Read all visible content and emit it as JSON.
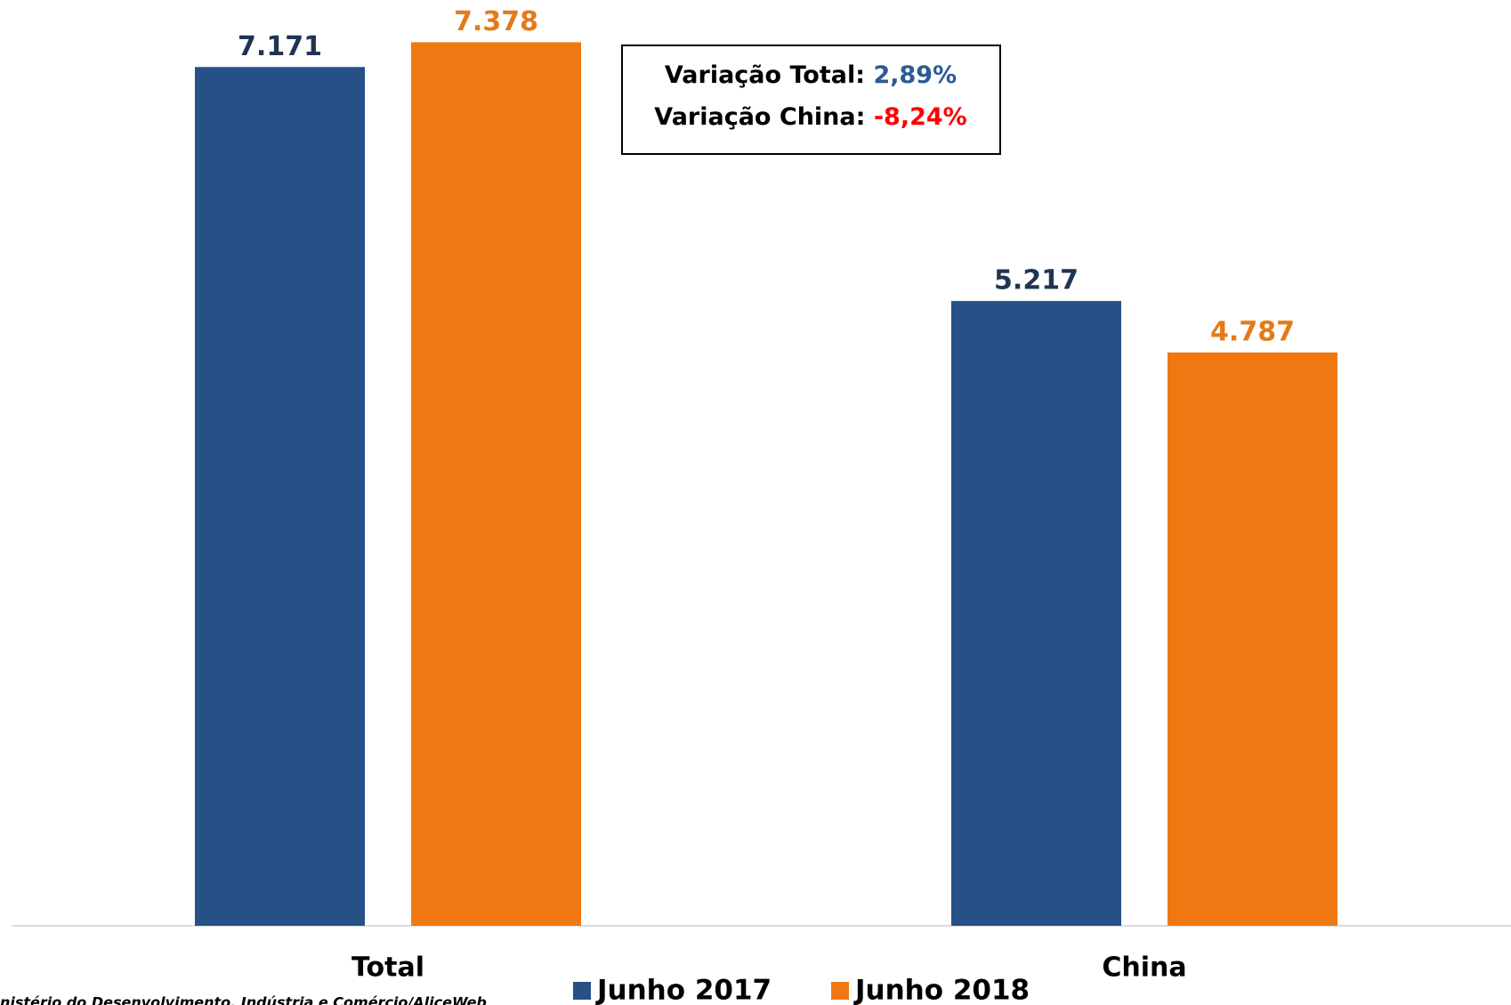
{
  "chart_data": {
    "type": "bar",
    "categories": [
      "Total",
      "China"
    ],
    "series": [
      {
        "name": "Junho 2017",
        "color": "#265086",
        "label_color": "#1f3552",
        "values": [
          7171,
          5217
        ],
        "value_labels": [
          "7.171",
          "5.217"
        ]
      },
      {
        "name": "Junho 2018",
        "color": "#f07812",
        "label_color": "#e47a1a",
        "values": [
          7378,
          4787
        ],
        "value_labels": [
          "7.378",
          "4.787"
        ]
      }
    ],
    "ylim": [
      0,
      7500
    ],
    "annotations": [
      {
        "label": "Variação Total:",
        "value": "2,89%",
        "color": "#2e5a94"
      },
      {
        "label": "Variação China:",
        "value": "-8,24%",
        "color": "#ff0000"
      }
    ],
    "source": "nistério do Desenvolvimento, Indústria e Comércio/AliceWeb"
  }
}
